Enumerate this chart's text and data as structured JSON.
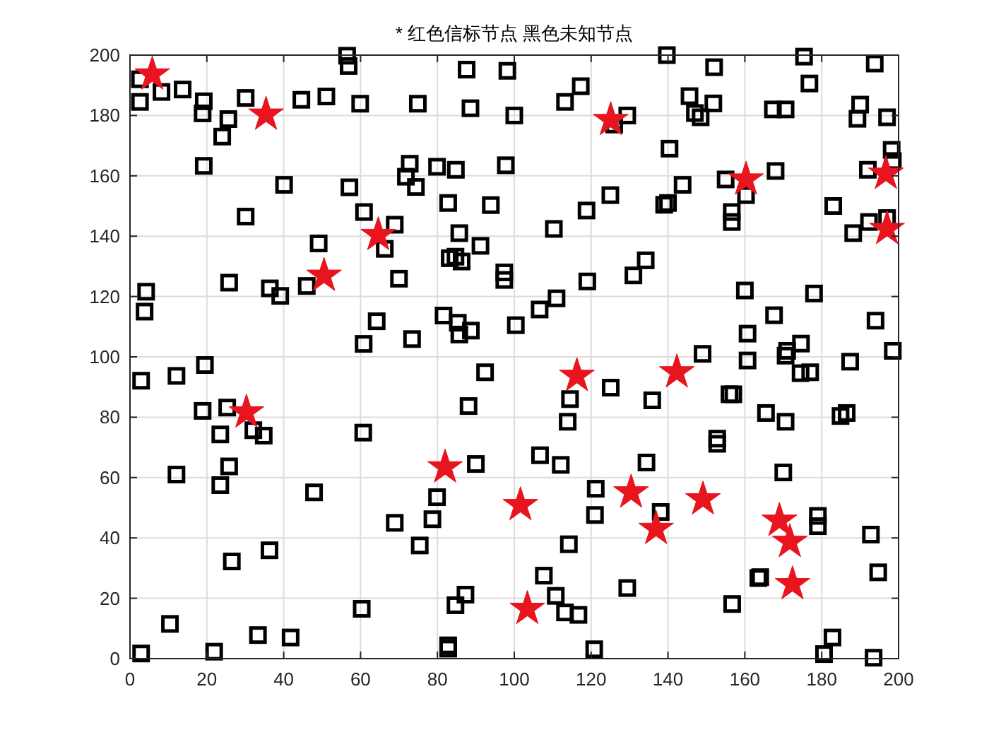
{
  "chart_data": {
    "type": "scatter",
    "title": "* 红色信标节点 黑色未知节点",
    "xlim": [
      0,
      200
    ],
    "ylim": [
      0,
      200
    ],
    "xticks": [
      0,
      20,
      40,
      60,
      80,
      100,
      120,
      140,
      160,
      180,
      200
    ],
    "yticks": [
      0,
      20,
      40,
      60,
      80,
      100,
      120,
      140,
      160,
      180,
      200
    ],
    "grid": true,
    "series": [
      {
        "color": "#000000",
        "marker": "square",
        "x": [
          98.2,
          100,
          97.8,
          113.2,
          117.3,
          126,
          129.4,
          139.7,
          152,
          145.6,
          147,
          148.5,
          151.8,
          167.3,
          170.6,
          175.4,
          176.8,
          193.8,
          190,
          189.3,
          197,
          140.4,
          198.2,
          198.5,
          192,
          155,
          168,
          160.3,
          143.8,
          125,
          118.8,
          110.3,
          139,
          140,
          156.6,
          156.6,
          183,
          192.3,
          188.2,
          197,
          97.4,
          97.4,
          119,
          131,
          134.2,
          160,
          178,
          111,
          106.6,
          100.4,
          167.6,
          194,
          160.7,
          174.6,
          171,
          149,
          198.5,
          56.5,
          56.9,
          2.6,
          2.6,
          8.2,
          13.7,
          19.2,
          18.9,
          25.6,
          24,
          30.1,
          44.6,
          51.1,
          59.9,
          74.9,
          87.6,
          88.6,
          19.2,
          40.1,
          57.1,
          72.8,
          71.8,
          74.4,
          79.9,
          84.8,
          82.8,
          93.9,
          30.1,
          60.9,
          68.9,
          66.3,
          49.1,
          85.7,
          91.2,
          83.2,
          84.7,
          86.3,
          70,
          25.8,
          46,
          36.4,
          39.1,
          4.2,
          3.8,
          64.2,
          81.6,
          85.3,
          85.7,
          88.7,
          60.8,
          73.4,
          19.5,
          2.9,
          12.1,
          92.4,
          88.1,
          18.9,
          25.3,
          32.1,
          34.8,
          23.5,
          60.7,
          25.8,
          12.1,
          23.5,
          47.9,
          90,
          79.9,
          78.7,
          68.9,
          75.4,
          36.3,
          26.5,
          87.3,
          84.7,
          60.3,
          10.4,
          33.3,
          41.8,
          2.9,
          21.9,
          82.8,
          82.8,
          160.7,
          170.6,
          174.5,
          177,
          187.4,
          125.1,
          114.5,
          113.9,
          135.9,
          156,
          157,
          165.5,
          170.6,
          184.9,
          186.5,
          152.8,
          152.8,
          106.7,
          112.1,
          134.4,
          170,
          121.2,
          121,
          138.1,
          179,
          179,
          192.8,
          114.2,
          107.7,
          110.8,
          113.2,
          116.7,
          129.4,
          163.5,
          164,
          156.7,
          194.7,
          120.8,
          182.8,
          180.6,
          193.5
        ],
        "values": [
          194.8,
          180,
          163.5,
          184.5,
          189.7,
          177,
          180,
          200,
          196,
          186.4,
          180.8,
          179.4,
          184,
          182,
          182,
          199.5,
          190.6,
          197.2,
          183.6,
          178.9,
          179.4,
          169,
          168.6,
          164.9,
          162,
          158.8,
          161.6,
          153.6,
          157,
          153.6,
          148.5,
          142.4,
          150.4,
          151,
          148,
          144.7,
          150,
          144.7,
          141,
          146,
          128,
          125.5,
          125,
          127,
          132,
          122,
          121,
          119.4,
          115.7,
          110.5,
          113.8,
          112,
          107.7,
          104.4,
          102,
          101,
          102,
          199.8,
          196.4,
          192,
          184.5,
          187.8,
          188.6,
          184.7,
          180.7,
          178.8,
          173,
          185.8,
          185.2,
          186.3,
          183.9,
          183.9,
          195.2,
          182.4,
          163.3,
          157,
          156.2,
          164,
          159.7,
          156.3,
          163,
          162,
          151,
          150.3,
          146.5,
          148,
          143.8,
          135.8,
          137.6,
          141,
          136.8,
          132.7,
          133.2,
          131.6,
          125.9,
          124.6,
          123.5,
          122.7,
          120.2,
          121.6,
          115,
          111.8,
          113.7,
          111.3,
          107.4,
          108.7,
          104.3,
          105.9,
          97.3,
          92.1,
          93.7,
          94.9,
          83.7,
          82.1,
          83.2,
          75.7,
          73.9,
          74.3,
          74.9,
          63.7,
          61,
          57.5,
          55.1,
          64.5,
          53.5,
          46.2,
          45,
          37.5,
          35.9,
          32.2,
          21.2,
          17.7,
          16.5,
          11.5,
          7.8,
          7,
          1.7,
          2.3,
          4.4,
          3.3,
          98.8,
          100.4,
          94.6,
          94.9,
          98.4,
          89.8,
          86,
          78.5,
          85.6,
          87.6,
          87.6,
          81.4,
          78.5,
          80.4,
          81.4,
          72.9,
          71.2,
          67.4,
          64.2,
          65,
          61.7,
          56.3,
          47.6,
          48.6,
          47.3,
          43.9,
          41.1,
          37.9,
          27.5,
          20.8,
          15.3,
          14.5,
          23.4,
          26.7,
          27,
          18.1,
          28.6,
          3.1,
          7,
          1.5,
          0.3
        ]
      },
      {
        "color": "#e8141e",
        "marker": "star",
        "x": [
          5.8,
          35.4,
          64.6,
          50.5,
          30.3,
          82,
          101.6,
          103.4,
          116.3,
          125.1,
          160.3,
          196.7,
          197,
          142.3,
          130.4,
          149.1,
          136.9,
          169,
          171.7,
          172.4
        ],
        "values": [
          193.6,
          180.3,
          140.4,
          126.9,
          81.6,
          63.4,
          50.9,
          16.5,
          93.7,
          178.5,
          158.8,
          160.7,
          142.4,
          94.9,
          55.1,
          52.8,
          43,
          45.7,
          38.7,
          24.7
        ]
      }
    ]
  }
}
